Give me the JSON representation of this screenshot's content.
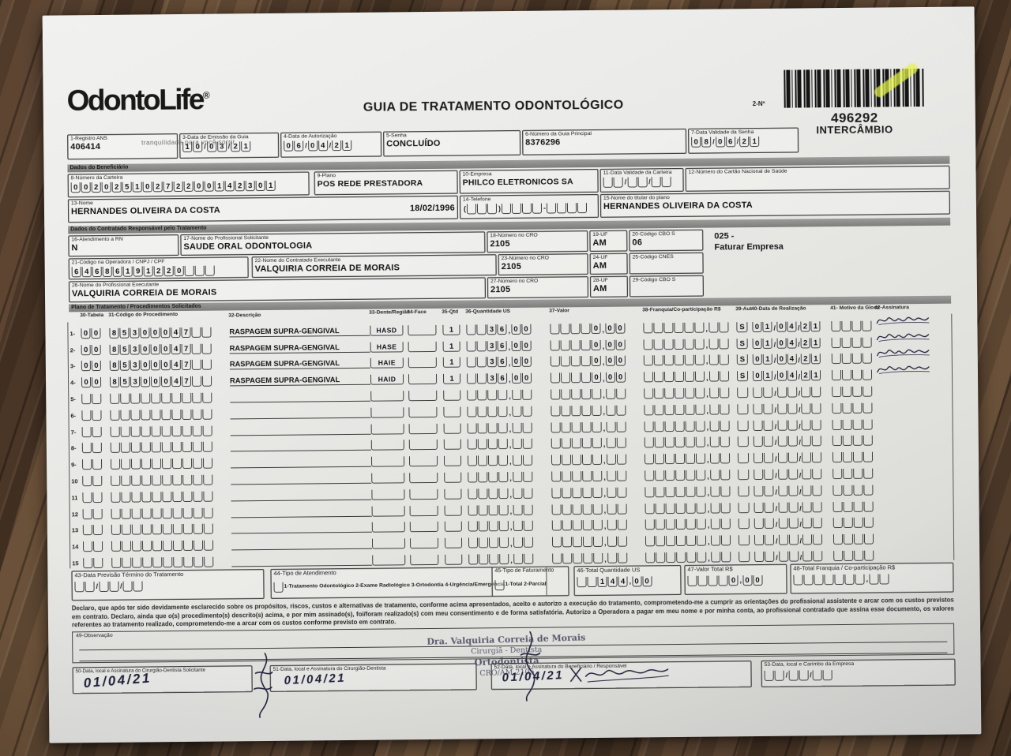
{
  "header": {
    "logo_text": "OdontoLife",
    "logo_reg": "®",
    "tagline": "tranquilidade para você sorrir",
    "title": "GUIA DE TRATAMENTO ODONTOLÓGICO",
    "num_label": "2-Nº",
    "barcode_number": "496292",
    "barcode_caption": "INTERCÂMBIO"
  },
  "row1": {
    "registro_ans": {
      "label": "1-Registro ANS",
      "value": "406414"
    },
    "emissao": {
      "label": "3-Data de Emissão da Guia",
      "value": "10/03/21"
    },
    "autorizacao": {
      "label": "4-Data de Autorização",
      "value": "06/04/21"
    },
    "senha": {
      "label": "5-Senha",
      "value": "CONCLUÍDO"
    },
    "guia_principal": {
      "label": "6-Número da Guia Principal",
      "value": "8376296"
    },
    "validade_senha": {
      "label": "7-Data Validade da Senha",
      "value": "08/06/21"
    }
  },
  "beneficiario": {
    "section_title": "Dados do Beneficiário",
    "carteira": {
      "label": "8-Número da Carteira",
      "value": "00202510272200142301"
    },
    "plano": {
      "label": "9-Plano",
      "value": "POS REDE PRESTADORA"
    },
    "empresa": {
      "label": "10-Empresa",
      "value": "PHILCO ELETRONICOS SA"
    },
    "validade_carteira": {
      "label": "11-Data Validade da Carteira",
      "value": ""
    },
    "cns": {
      "label": "12-Número do Cartão Nacional de Saúde",
      "value": ""
    },
    "nome": {
      "label": "13-Nome",
      "value": "HERNANDES OLIVEIRA DA COSTA",
      "nascimento": "18/02/1996"
    },
    "telefone": {
      "label": "14-Telefone",
      "value": ""
    },
    "titular": {
      "label": "15-Nome do titular do plano",
      "value": "HERNANDES OLIVEIRA DA COSTA"
    }
  },
  "contratado": {
    "section_title": "Dados do Contratado Responsável pelo Tratamento",
    "rn": {
      "label": "16-Atendimento a RN",
      "value": "N"
    },
    "solicitante": {
      "label": "17-Nome do Profissional Solicitante",
      "value": "SAUDE ORAL ODONTOLOGIA"
    },
    "cro18": {
      "label": "18-Número no CRO",
      "value": "2105"
    },
    "uf19": {
      "label": "19-UF",
      "value": "AM"
    },
    "cbo20": {
      "label": "20-Código CBO S",
      "value": "06"
    },
    "faturar_line1": "025 -",
    "faturar_line2": "Faturar Empresa",
    "cnpj": {
      "label": "21-Código na Operadora / CNPJ / CPF",
      "value": "64686191220"
    },
    "executante": {
      "label": "22-Nome do Contratado Executante",
      "value": "VALQUIRIA CORREIA DE MORAIS"
    },
    "cro23": {
      "label": "23-Número no CRO",
      "value": "2105"
    },
    "uf24": {
      "label": "24-UF",
      "value": "AM"
    },
    "cnes25": {
      "label": "25-Código CNES",
      "value": ""
    },
    "prof_executante": {
      "label": "26-Nome do Profissional Executante",
      "value": "VALQUIRIA CORREIA DE MORAIS"
    },
    "cro27": {
      "label": "27-Número no CRO",
      "value": "2105"
    },
    "uf28": {
      "label": "28-UF",
      "value": "AM"
    },
    "cbo29": {
      "label": "29-Código CBO S",
      "value": ""
    }
  },
  "table": {
    "section_title": "Plano de Tratamento / Procedimentos Solicitados",
    "headers": [
      "30-Tabela",
      "31-Código do Procedimento",
      "32-Descrição",
      "33-Dente/Região",
      "34-Face",
      "35-Qtd",
      "36-Quantidade US",
      "37-Valor",
      "38-Franquia/Co-participação R$",
      "39-Aut",
      "40-Data de Realização",
      "41- Motivo da Glosa",
      "42-Assinatura"
    ],
    "rows": [
      {
        "num": "1-",
        "tabela": "00",
        "codigo": "85300047",
        "desc": "RASPAGEM SUPRA-GENGIVAL",
        "dente": "HASD",
        "face": "",
        "qtd": "1",
        "qus": "36,00",
        "valor": "0,00",
        "franquia": "",
        "aut": "S",
        "data": "01/04/21",
        "glosa": "",
        "signed": true
      },
      {
        "num": "2-",
        "tabela": "00",
        "codigo": "85300047",
        "desc": "RASPAGEM SUPRA-GENGIVAL",
        "dente": "HASE",
        "face": "",
        "qtd": "1",
        "qus": "36,00",
        "valor": "0,00",
        "franquia": "",
        "aut": "S",
        "data": "01/04/21",
        "glosa": "",
        "signed": true
      },
      {
        "num": "3-",
        "tabela": "00",
        "codigo": "85300047",
        "desc": "RASPAGEM SUPRA-GENGIVAL",
        "dente": "HAIE",
        "face": "",
        "qtd": "1",
        "qus": "36,00",
        "valor": "0,00",
        "franquia": "",
        "aut": "S",
        "data": "01/04/21",
        "glosa": "",
        "signed": true
      },
      {
        "num": "4-",
        "tabela": "00",
        "codigo": "85300047",
        "desc": "RASPAGEM SUPRA-GENGIVAL",
        "dente": "HAID",
        "face": "",
        "qtd": "1",
        "qus": "36,00",
        "valor": "0,00",
        "franquia": "",
        "aut": "S",
        "data": "01/04/21",
        "glosa": "",
        "signed": true
      },
      {
        "num": "5-",
        "tabela": "",
        "codigo": "",
        "desc": "",
        "dente": "",
        "face": "",
        "qtd": "",
        "qus": "",
        "valor": "",
        "franquia": "",
        "aut": "",
        "data": "",
        "glosa": "",
        "signed": false
      },
      {
        "num": "6-",
        "tabela": "",
        "codigo": "",
        "desc": "",
        "dente": "",
        "face": "",
        "qtd": "",
        "qus": "",
        "valor": "",
        "franquia": "",
        "aut": "",
        "data": "",
        "glosa": "",
        "signed": false
      },
      {
        "num": "7-",
        "tabela": "",
        "codigo": "",
        "desc": "",
        "dente": "",
        "face": "",
        "qtd": "",
        "qus": "",
        "valor": "",
        "franquia": "",
        "aut": "",
        "data": "",
        "glosa": "",
        "signed": false
      },
      {
        "num": "8-",
        "tabela": "",
        "codigo": "",
        "desc": "",
        "dente": "",
        "face": "",
        "qtd": "",
        "qus": "",
        "valor": "",
        "franquia": "",
        "aut": "",
        "data": "",
        "glosa": "",
        "signed": false
      },
      {
        "num": "9-",
        "tabela": "",
        "codigo": "",
        "desc": "",
        "dente": "",
        "face": "",
        "qtd": "",
        "qus": "",
        "valor": "",
        "franquia": "",
        "aut": "",
        "data": "",
        "glosa": "",
        "signed": false
      },
      {
        "num": "10",
        "tabela": "",
        "codigo": "",
        "desc": "",
        "dente": "",
        "face": "",
        "qtd": "",
        "qus": "",
        "valor": "",
        "franquia": "",
        "aut": "",
        "data": "",
        "glosa": "",
        "signed": false
      },
      {
        "num": "11",
        "tabela": "",
        "codigo": "",
        "desc": "",
        "dente": "",
        "face": "",
        "qtd": "",
        "qus": "",
        "valor": "",
        "franquia": "",
        "aut": "",
        "data": "",
        "glosa": "",
        "signed": false
      },
      {
        "num": "12",
        "tabela": "",
        "codigo": "",
        "desc": "",
        "dente": "",
        "face": "",
        "qtd": "",
        "qus": "",
        "valor": "",
        "franquia": "",
        "aut": "",
        "data": "",
        "glosa": "",
        "signed": false
      },
      {
        "num": "13",
        "tabela": "",
        "codigo": "",
        "desc": "",
        "dente": "",
        "face": "",
        "qtd": "",
        "qus": "",
        "valor": "",
        "franquia": "",
        "aut": "",
        "data": "",
        "glosa": "",
        "signed": false
      },
      {
        "num": "14",
        "tabela": "",
        "codigo": "",
        "desc": "",
        "dente": "",
        "face": "",
        "qtd": "",
        "qus": "",
        "valor": "",
        "franquia": "",
        "aut": "",
        "data": "",
        "glosa": "",
        "signed": false
      },
      {
        "num": "15",
        "tabela": "",
        "codigo": "",
        "desc": "",
        "dente": "",
        "face": "",
        "qtd": "",
        "qus": "",
        "valor": "",
        "franquia": "",
        "aut": "",
        "data": "",
        "glosa": "",
        "signed": false
      }
    ]
  },
  "totals": {
    "previsao": {
      "label": "43-Data Previsão Término do Tratamento",
      "value": ""
    },
    "tipo_atendimento": {
      "label": "44-Tipo de Atendimento",
      "options": "1-Tratamento Odontológico   2-Exame Radiológico   3-Ortodontia   4-Urgência/Emergência"
    },
    "tipo_faturamento": {
      "label": "45-Tipo de Faturamento",
      "options": "1-Total  2-Parcial"
    },
    "total_us": {
      "label": "46-Total Quantidade US",
      "value": "144,00"
    },
    "valor_total": {
      "label": "47-Valor Total R$",
      "value": "0,00"
    },
    "total_franquia": {
      "label": "48-Total Franquia / Co-participação R$",
      "value": ""
    }
  },
  "declaration": "Declaro, que após ter sido devidamente esclarecido sobre os propósitos, riscos, custos e alternativas de tratamento, conforme acima apresentados, aceito e autorizo a execução do tratamento, comprometendo-me a cumprir as orientações do profissional assistente e arcar com os custos previstos em contrato. Declaro, ainda que o(s) procedimento(s) descrito(s) acima, e por mim assinado(s), foi/foram realizado(s) com meu consentimento e de forma satisfatória. Autorizo a Operadora a pagar em meu nome e por minha conta, ao profissional contratado que assina esse documento, os valores referentes ao tratamento realizado, comprometendo-me a arcar com os custos conforme previsto em contrato.",
  "observacao": {
    "label": "49-Observação"
  },
  "stamp": {
    "line1": "Dra. Valquiria Correia de Morais",
    "line2": "Cirurgiã - Dentista",
    "line3": "Ortodontista",
    "line4": "CRO/AM 2105"
  },
  "signatures": {
    "f50": {
      "label": "50-Data, local e Assinatura do Cirurgião-Dentista Solicitante",
      "date": "01/04/21"
    },
    "f51": {
      "label": "51-Data, local e Assinatura do Cirurgião-Dentista",
      "date": "01/04/21"
    },
    "f52": {
      "label": "52-Data, local e Assinatura do Beneficiário / Responsável",
      "date": "01/04/21"
    },
    "f53": {
      "label": "53-Data, local e Carimbo da Empresa",
      "value": ""
    }
  }
}
